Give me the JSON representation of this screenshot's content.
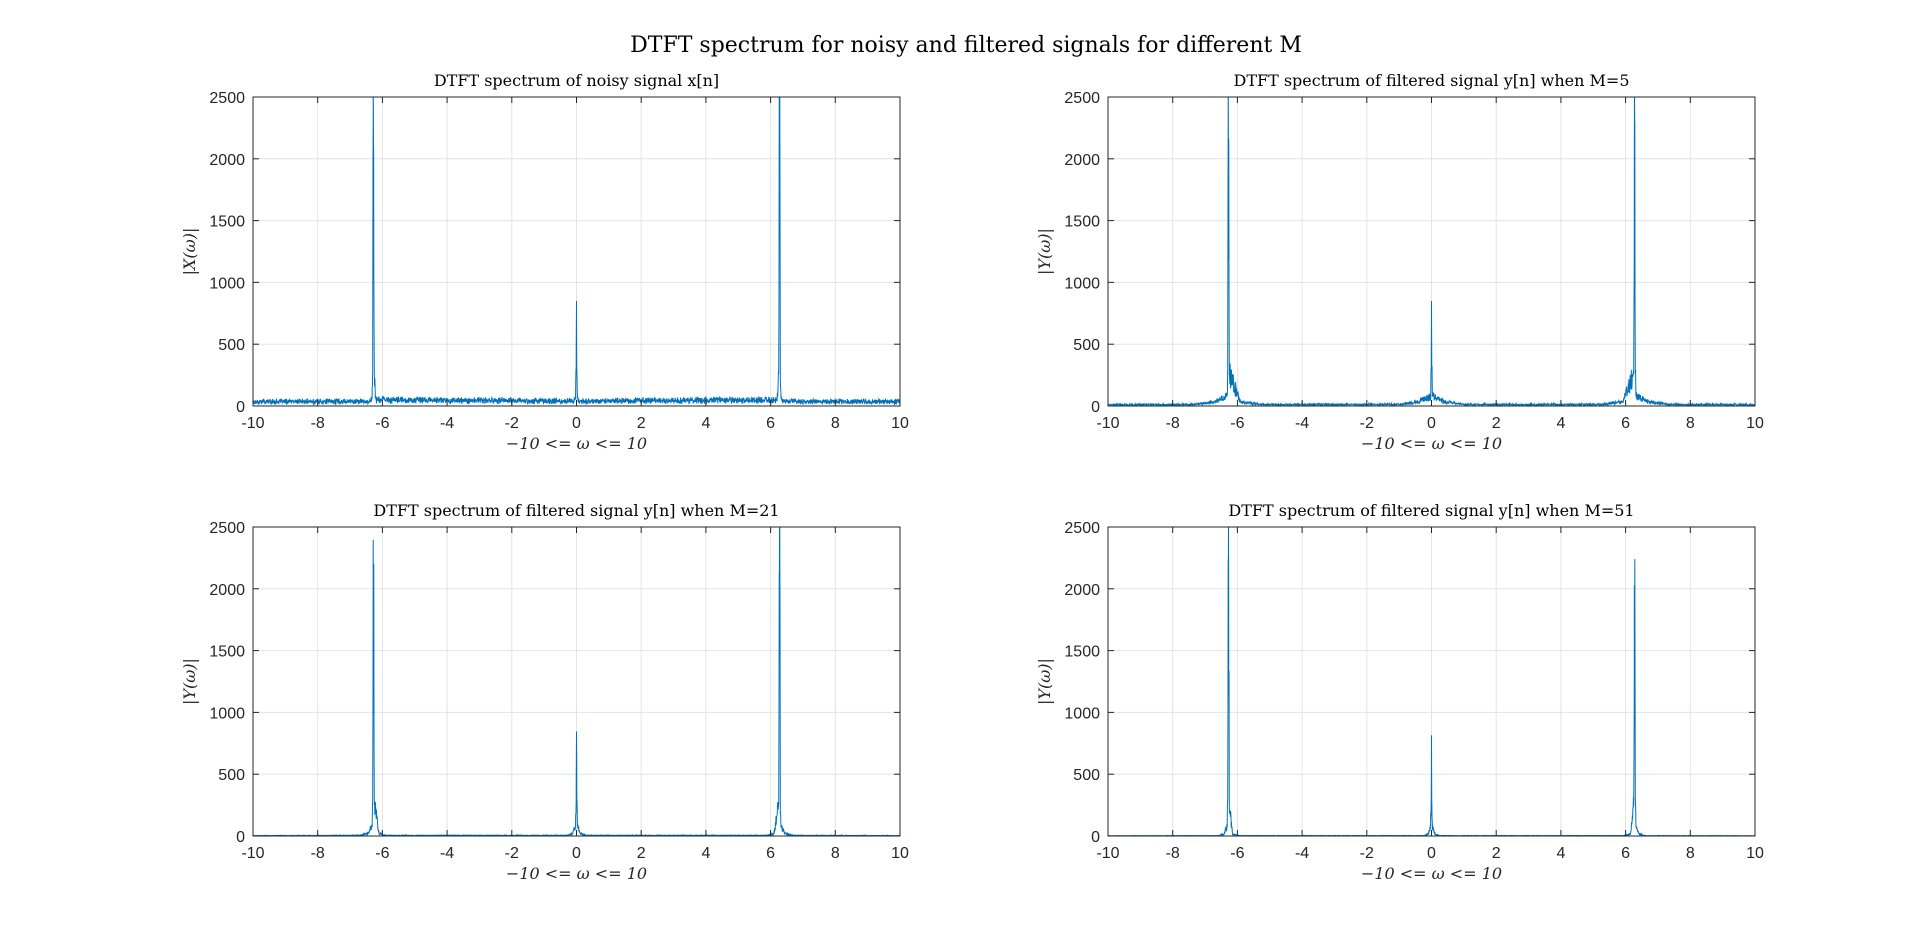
{
  "figure": {
    "title": "DTFT spectrum for noisy and filtered signals for different M"
  },
  "style": {
    "line_color": "#0072BD",
    "grid_color": "#e3e3e3",
    "axes_color": "#262626"
  },
  "chart_data": [
    {
      "type": "line",
      "title": "DTFT spectrum of noisy signal x[n]",
      "xlabel": "−10 <= ω <= 10",
      "ylabel": "|X(ω)|",
      "xlim": [
        -10,
        10
      ],
      "ylim": [
        0,
        2500
      ],
      "xticks": [
        -10,
        -8,
        -6,
        -4,
        -2,
        0,
        2,
        4,
        6,
        8,
        10
      ],
      "yticks": [
        0,
        500,
        1000,
        1500,
        2000,
        2500
      ],
      "xtick_labels": [
        "-10",
        "-8",
        "-6",
        "-4",
        "-2",
        "0",
        "2",
        "4",
        "6",
        "8",
        "10"
      ],
      "ytick_labels": [
        "0",
        "500",
        "1000",
        "1500",
        "2000",
        "2500"
      ],
      "grid": true,
      "series": [
        {
          "x": [
            -10,
            -6.38,
            -6.32,
            -6.3,
            -6.285,
            -6.27,
            -6.25,
            -6.2,
            -0.08,
            -0.03,
            -0.01,
            0,
            0.01,
            0.03,
            0.08,
            6.2,
            6.25,
            6.27,
            6.285,
            6.3,
            6.32,
            6.38,
            10
          ],
          "y": [
            35,
            38,
            60,
            300,
            2300,
            2060,
            260,
            50,
            40,
            60,
            300,
            850,
            300,
            60,
            40,
            50,
            260,
            2060,
            2300,
            300,
            60,
            38,
            35
          ],
          "noise_floor": 35
        }
      ]
    },
    {
      "type": "line",
      "title": "DTFT spectrum of filtered signal y[n] when M=5",
      "xlabel": "−10 <= ω <= 10",
      "ylabel": "|Y(ω)|",
      "xlim": [
        -10,
        10
      ],
      "ylim": [
        0,
        2500
      ],
      "xticks": [
        -10,
        -8,
        -6,
        -4,
        -2,
        0,
        2,
        4,
        6,
        8,
        10
      ],
      "yticks": [
        0,
        500,
        1000,
        1500,
        2000,
        2500
      ],
      "xtick_labels": [
        "-10",
        "-8",
        "-6",
        "-4",
        "-2",
        "0",
        "2",
        "4",
        "6",
        "8",
        "10"
      ],
      "ytick_labels": [
        "0",
        "500",
        "1000",
        "1500",
        "2000",
        "2500"
      ],
      "grid": true,
      "series": [
        {
          "x": [
            -10,
            -7.3,
            -6.7,
            -6.32,
            -6.3,
            -6.285,
            -6.27,
            -6.25,
            -5.9,
            -5.3,
            -1.0,
            -0.4,
            -0.03,
            -0.01,
            0,
            0.01,
            0.03,
            0.4,
            1.0,
            5.3,
            5.9,
            6.25,
            6.27,
            6.285,
            6.3,
            6.32,
            6.7,
            7.3,
            10
          ],
          "y": [
            10,
            12,
            35,
            80,
            300,
            2300,
            2060,
            260,
            35,
            12,
            12,
            35,
            80,
            300,
            850,
            300,
            80,
            35,
            12,
            12,
            35,
            260,
            2060,
            2300,
            300,
            80,
            35,
            12,
            10
          ],
          "noise_floor": 15
        }
      ]
    },
    {
      "type": "line",
      "title": "DTFT spectrum of filtered signal y[n] when M=21",
      "xlabel": "−10 <= ω <= 10",
      "ylabel": "|Y(ω)|",
      "xlim": [
        -10,
        10
      ],
      "ylim": [
        0,
        2500
      ],
      "xticks": [
        -10,
        -8,
        -6,
        -4,
        -2,
        0,
        2,
        4,
        6,
        8,
        10
      ],
      "yticks": [
        0,
        500,
        1000,
        1500,
        2000,
        2500
      ],
      "xtick_labels": [
        "-10",
        "-8",
        "-6",
        "-4",
        "-2",
        "0",
        "2",
        "4",
        "6",
        "8",
        "10"
      ],
      "ytick_labels": [
        "0",
        "500",
        "1000",
        "1500",
        "2000",
        "2500"
      ],
      "grid": true,
      "series": [
        {
          "x": [
            -10,
            -6.7,
            -6.45,
            -6.32,
            -6.3,
            -6.285,
            -6.27,
            -6.25,
            -6.1,
            -5.9,
            -0.3,
            -0.12,
            -0.03,
            -0.01,
            0,
            0.01,
            0.03,
            0.12,
            0.3,
            5.9,
            6.1,
            6.25,
            6.27,
            6.285,
            6.3,
            6.32,
            6.45,
            6.7,
            10
          ],
          "y": [
            3,
            5,
            20,
            80,
            300,
            2290,
            2060,
            250,
            20,
            5,
            5,
            20,
            80,
            300,
            845,
            300,
            80,
            20,
            5,
            5,
            20,
            250,
            2060,
            2290,
            300,
            80,
            20,
            5,
            3
          ],
          "noise_floor": 4
        }
      ]
    },
    {
      "type": "line",
      "title": "DTFT spectrum of filtered signal y[n] when M=51",
      "xlabel": "−10 <= ω <= 10",
      "ylabel": "|Y(ω)|",
      "xlim": [
        -10,
        10
      ],
      "ylim": [
        0,
        2500
      ],
      "xticks": [
        -10,
        -8,
        -6,
        -4,
        -2,
        0,
        2,
        4,
        6,
        8,
        10
      ],
      "yticks": [
        0,
        500,
        1000,
        1500,
        2000,
        2500
      ],
      "xtick_labels": [
        "-10",
        "-8",
        "-6",
        "-4",
        "-2",
        "0",
        "2",
        "4",
        "6",
        "8",
        "10"
      ],
      "ytick_labels": [
        "0",
        "500",
        "1000",
        "1500",
        "2000",
        "2500"
      ],
      "grid": true,
      "series": [
        {
          "x": [
            -10,
            -6.6,
            -6.42,
            -6.32,
            -6.3,
            -6.285,
            -6.27,
            -6.25,
            -6.15,
            -5.95,
            -0.25,
            -0.1,
            -0.03,
            -0.01,
            0,
            0.01,
            0.03,
            0.1,
            0.25,
            5.95,
            6.15,
            6.25,
            6.27,
            6.285,
            6.3,
            6.32,
            6.42,
            6.6,
            10
          ],
          "y": [
            2,
            3,
            15,
            70,
            280,
            2240,
            2030,
            240,
            15,
            3,
            3,
            15,
            70,
            280,
            815,
            280,
            70,
            15,
            3,
            3,
            15,
            240,
            2030,
            2240,
            280,
            70,
            15,
            3,
            2
          ],
          "noise_floor": 2
        }
      ]
    }
  ]
}
